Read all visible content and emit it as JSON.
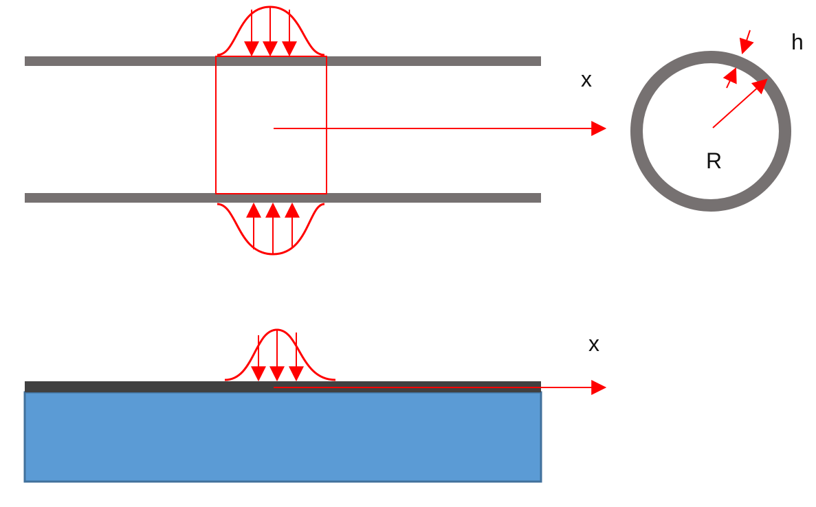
{
  "labels": {
    "upper_axis": "x",
    "thickness": "h",
    "radius": "R",
    "lower_axis": "x"
  },
  "colors": {
    "wall": "#767171",
    "load": "#ff0000",
    "plate": "#404040",
    "substrate_fill": "#5b9bd5",
    "substrate_edge": "#41719c"
  }
}
